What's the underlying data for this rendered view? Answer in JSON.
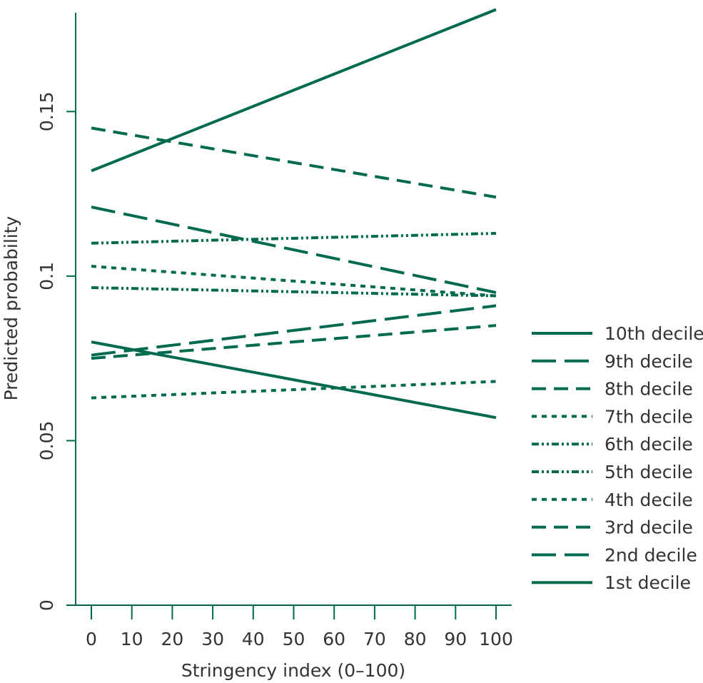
{
  "chart_data": {
    "type": "line",
    "title": "",
    "xlabel": "Stringency index (0–100)",
    "ylabel": "Predicted probability",
    "xlim": [
      0,
      100
    ],
    "ylim": [
      0,
      0.18
    ],
    "x_ticks": [
      0,
      10,
      20,
      30,
      40,
      50,
      60,
      70,
      80,
      90,
      100
    ],
    "x_tick_labels": [
      "0",
      "10",
      "20",
      "30",
      "40",
      "50",
      "60",
      "70",
      "80",
      "90",
      "100"
    ],
    "y_ticks": [
      0,
      0.05,
      0.1,
      0.15
    ],
    "y_tick_labels": [
      "0",
      "0.05",
      "0.1",
      "0.15"
    ],
    "grid": false,
    "legend_position": "right",
    "line_color": "#006a4e",
    "series": [
      {
        "name": "10th decile",
        "style": "solid",
        "x": [
          0,
          100
        ],
        "y": [
          0.132,
          0.181
        ]
      },
      {
        "name": "9th decile",
        "style": "long-dash",
        "x": [
          0,
          100
        ],
        "y": [
          0.121,
          0.095
        ]
      },
      {
        "name": "8th decile",
        "style": "dash",
        "x": [
          0,
          100
        ],
        "y": [
          0.145,
          0.124
        ]
      },
      {
        "name": "7th decile",
        "style": "dot",
        "x": [
          0,
          100
        ],
        "y": [
          0.103,
          0.094
        ]
      },
      {
        "name": "6th decile",
        "style": "dash-dot-dot",
        "x": [
          0,
          100
        ],
        "y": [
          0.11,
          0.113
        ]
      },
      {
        "name": "5th decile",
        "style": "dash-dot-dot",
        "x": [
          0,
          100
        ],
        "y": [
          0.0965,
          0.094
        ]
      },
      {
        "name": "4th decile",
        "style": "dot",
        "x": [
          0,
          100
        ],
        "y": [
          0.063,
          0.068
        ]
      },
      {
        "name": "3rd decile",
        "style": "dash",
        "x": [
          0,
          100
        ],
        "y": [
          0.075,
          0.085
        ]
      },
      {
        "name": "2nd decile",
        "style": "long-dash",
        "x": [
          0,
          100
        ],
        "y": [
          0.076,
          0.091
        ]
      },
      {
        "name": "1st decile",
        "style": "solid",
        "x": [
          0,
          100
        ],
        "y": [
          0.08,
          0.057
        ]
      }
    ]
  }
}
